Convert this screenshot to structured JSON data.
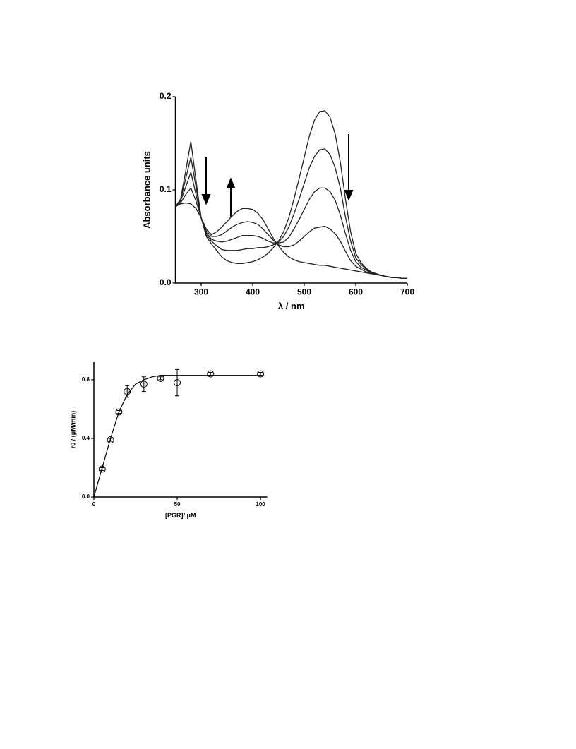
{
  "chart_data": [
    {
      "type": "line",
      "xlabel": "λ / nm",
      "ylabel": "Absorbance units",
      "x": [
        250,
        260,
        270,
        280,
        290,
        300,
        310,
        320,
        330,
        340,
        350,
        360,
        370,
        380,
        390,
        400,
        410,
        420,
        430,
        440,
        450,
        460,
        470,
        480,
        490,
        500,
        510,
        520,
        530,
        540,
        550,
        560,
        570,
        580,
        590,
        600,
        610,
        620,
        630,
        640,
        650,
        660,
        670,
        680,
        690,
        700
      ],
      "series": [
        {
          "color": "#222222",
          "values": [
            0.082,
            0.09,
            0.12,
            0.152,
            0.11,
            0.07,
            0.05,
            0.042,
            0.035,
            0.028,
            0.024,
            0.022,
            0.021,
            0.021,
            0.022,
            0.023,
            0.025,
            0.028,
            0.032,
            0.038,
            0.045,
            0.055,
            0.07,
            0.09,
            0.112,
            0.135,
            0.158,
            0.175,
            0.184,
            0.185,
            0.178,
            0.16,
            0.13,
            0.09,
            0.055,
            0.032,
            0.022,
            0.016,
            0.012,
            0.01,
            0.008,
            0.007,
            0.006,
            0.006,
            0.005,
            0.005
          ]
        },
        {
          "color": "#222222",
          "values": [
            0.082,
            0.089,
            0.112,
            0.135,
            0.103,
            0.07,
            0.052,
            0.045,
            0.04,
            0.036,
            0.035,
            0.035,
            0.035,
            0.036,
            0.037,
            0.037,
            0.038,
            0.038,
            0.039,
            0.041,
            0.044,
            0.05,
            0.06,
            0.074,
            0.09,
            0.107,
            0.124,
            0.136,
            0.143,
            0.144,
            0.138,
            0.124,
            0.102,
            0.071,
            0.045,
            0.027,
            0.02,
            0.015,
            0.012,
            0.01,
            0.008,
            0.007,
            0.006,
            0.006,
            0.005,
            0.005
          ]
        },
        {
          "color": "#222222",
          "values": [
            0.082,
            0.088,
            0.103,
            0.119,
            0.095,
            0.07,
            0.054,
            0.047,
            0.045,
            0.044,
            0.045,
            0.047,
            0.049,
            0.051,
            0.051,
            0.051,
            0.05,
            0.048,
            0.045,
            0.043,
            0.043,
            0.044,
            0.049,
            0.058,
            0.068,
            0.079,
            0.09,
            0.098,
            0.102,
            0.102,
            0.098,
            0.089,
            0.073,
            0.053,
            0.035,
            0.023,
            0.017,
            0.014,
            0.011,
            0.01,
            0.008,
            0.007,
            0.006,
            0.006,
            0.005,
            0.005
          ]
        },
        {
          "color": "#222222",
          "values": [
            0.082,
            0.086,
            0.095,
            0.102,
            0.088,
            0.07,
            0.056,
            0.05,
            0.05,
            0.052,
            0.056,
            0.06,
            0.063,
            0.065,
            0.066,
            0.065,
            0.063,
            0.058,
            0.052,
            0.046,
            0.041,
            0.039,
            0.039,
            0.041,
            0.045,
            0.05,
            0.055,
            0.059,
            0.06,
            0.061,
            0.058,
            0.053,
            0.045,
            0.034,
            0.024,
            0.018,
            0.015,
            0.012,
            0.011,
            0.009,
            0.008,
            0.007,
            0.006,
            0.006,
            0.005,
            0.005
          ]
        },
        {
          "color": "#222222",
          "values": [
            0.082,
            0.085,
            0.086,
            0.085,
            0.08,
            0.07,
            0.058,
            0.052,
            0.055,
            0.06,
            0.066,
            0.072,
            0.077,
            0.08,
            0.08,
            0.079,
            0.075,
            0.068,
            0.058,
            0.048,
            0.04,
            0.033,
            0.028,
            0.025,
            0.023,
            0.022,
            0.021,
            0.02,
            0.019,
            0.019,
            0.018,
            0.017,
            0.016,
            0.015,
            0.014,
            0.013,
            0.012,
            0.011,
            0.01,
            0.009,
            0.008,
            0.007,
            0.006,
            0.006,
            0.005,
            0.005
          ]
        }
      ],
      "xlim": [
        250,
        700
      ],
      "xticks": [
        300,
        400,
        500,
        600,
        700
      ],
      "ylim": [
        0,
        0.2
      ],
      "yticks": [
        {
          "value": 0,
          "label": "0.0"
        },
        0.1,
        0.2
      ]
    },
    {
      "type": "scatter",
      "xlabel": "[PGR]/ μM",
      "ylabel": "r0 / (μM/min)",
      "series": [
        {
          "type": "scatter",
          "color": "#000000",
          "x": [
            5,
            10,
            15,
            20,
            30,
            40,
            50,
            70,
            100
          ],
          "values": [
            0.19,
            0.39,
            0.58,
            0.72,
            0.77,
            0.81,
            0.78,
            0.84,
            0.84
          ],
          "errors": [
            0.01,
            0.01,
            0.01,
            0.04,
            0.05,
            0.01,
            0.09,
            0.01,
            0.01
          ]
        },
        {
          "type": "line",
          "color": "#000000",
          "x": [
            0,
            5,
            10,
            15,
            20,
            25,
            30,
            35,
            40,
            50,
            70,
            100
          ],
          "values": [
            0,
            0.2,
            0.4,
            0.58,
            0.7,
            0.77,
            0.8,
            0.82,
            0.83,
            0.83,
            0.83,
            0.83
          ]
        }
      ],
      "xlim": [
        0,
        104
      ],
      "xticks": [
        0,
        50,
        100
      ],
      "ylim": [
        0,
        0.92
      ],
      "yticks": [
        {
          "value": 0,
          "label": "0.0"
        },
        {
          "value": 0.4,
          "label": "0.4"
        },
        {
          "value": 0.8,
          "label": "0.8"
        }
      ]
    }
  ]
}
